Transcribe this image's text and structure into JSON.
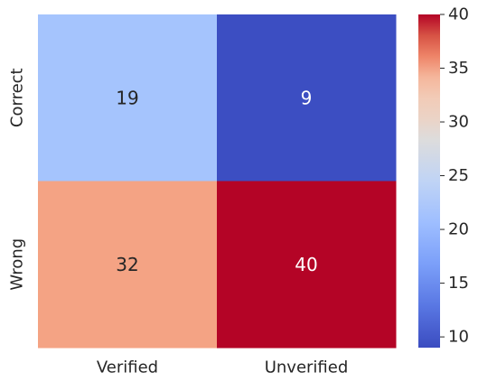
{
  "chart_data": {
    "type": "heatmap",
    "title": "",
    "xlabel": "",
    "ylabel": "",
    "x_categories": [
      "Verified",
      "Unverified"
    ],
    "y_categories": [
      "Correct",
      "Wrong"
    ],
    "values": [
      [
        19,
        9
      ],
      [
        32,
        40
      ]
    ],
    "cell_colors": [
      [
        "#a5c4fd",
        "#3c4ec2"
      ],
      [
        "#f4a384",
        "#b40426"
      ]
    ],
    "value_text_colors": [
      [
        "#262626",
        "#ffffff"
      ],
      [
        "#262626",
        "#ffffff"
      ]
    ],
    "colorbar": {
      "colormap": "coolwarm",
      "range": [
        9,
        40
      ],
      "ticks": [
        "10",
        "15",
        "20",
        "25",
        "30",
        "35",
        "40"
      ]
    },
    "grid": false,
    "legend": "colorbar-right"
  }
}
